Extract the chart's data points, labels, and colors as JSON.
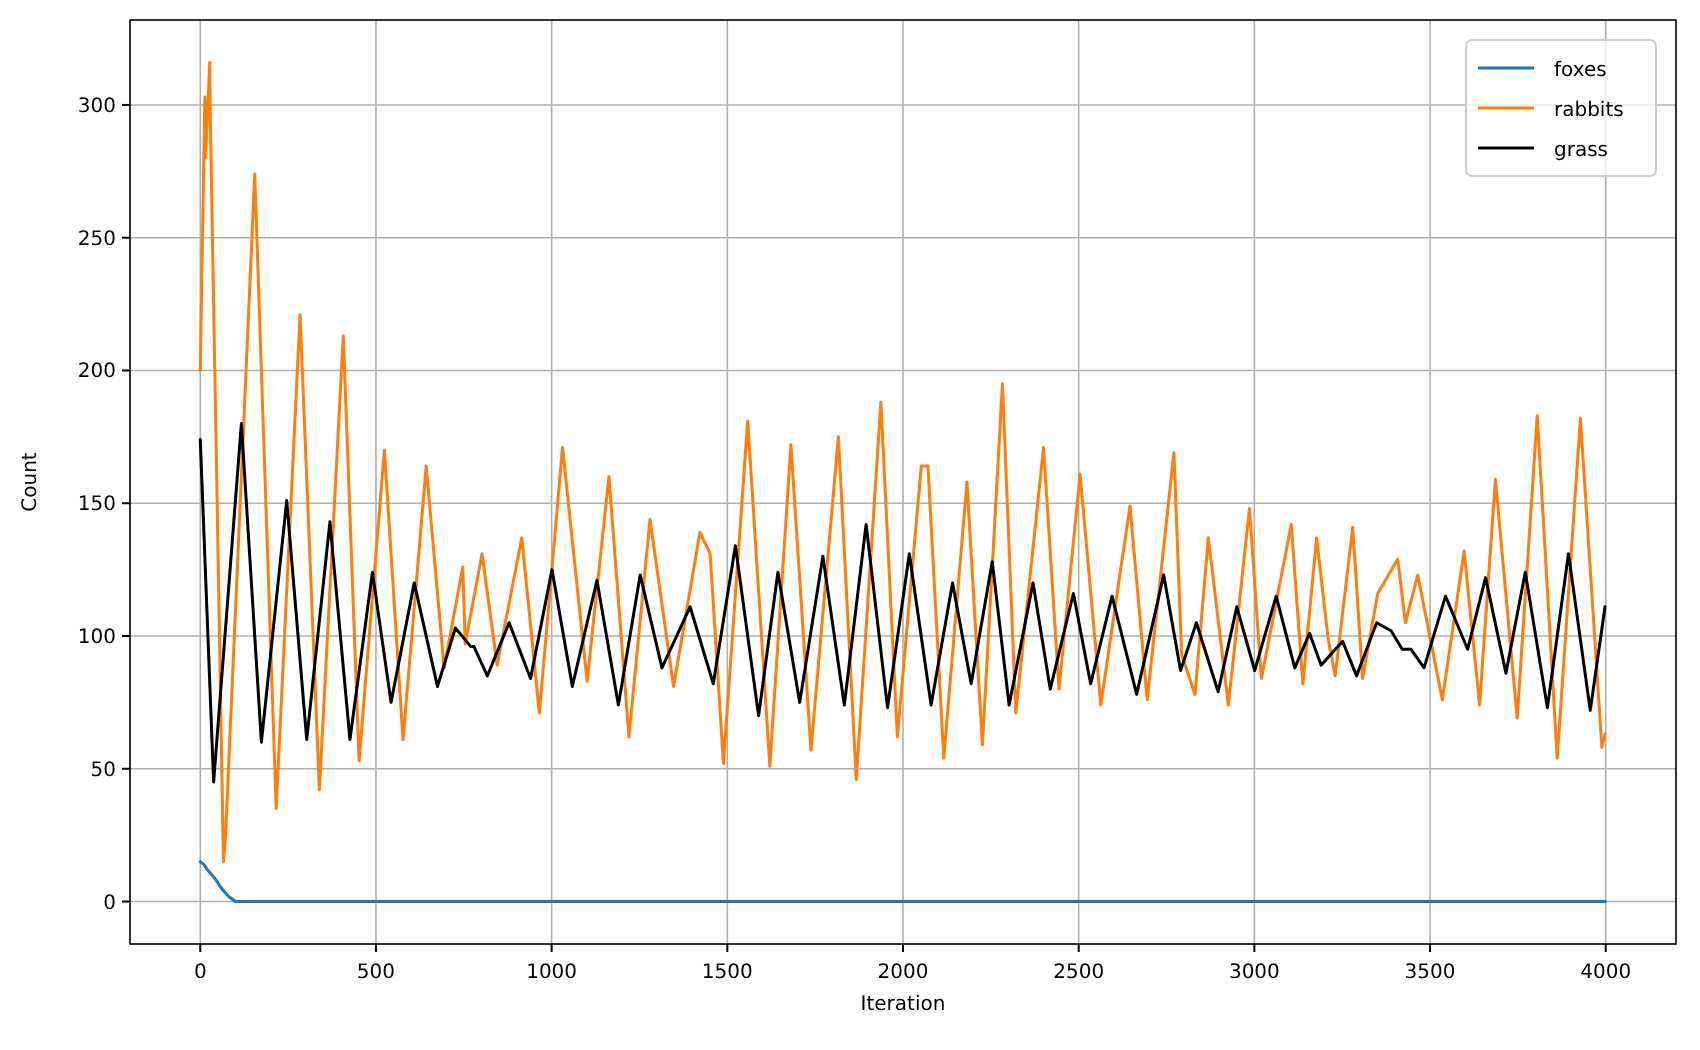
{
  "chart_data": {
    "type": "line",
    "xlabel": "Iteration",
    "ylabel": "Count",
    "xlim": [
      -200,
      4200
    ],
    "ylim": [
      -16,
      332
    ],
    "xticks": [
      0,
      500,
      1000,
      1500,
      2000,
      2500,
      3000,
      3500,
      4000
    ],
    "yticks": [
      0,
      50,
      100,
      150,
      200,
      250,
      300
    ],
    "grid": true,
    "legend": "top right",
    "line_style": "solid",
    "marker": "none",
    "series": [
      {
        "name": "foxes",
        "color": "#1f77b4",
        "x": [
          0,
          10,
          20,
          40,
          60,
          80,
          100,
          3999
        ],
        "values": [
          15,
          14,
          12,
          9,
          5,
          2,
          0,
          0
        ]
      },
      {
        "name": "rabbits",
        "color": "#ff7f0e",
        "x": [
          0,
          13,
          15,
          27,
          28,
          66,
          72,
          155,
          216,
          284,
          339,
          407,
          452,
          524,
          577,
          643,
          694,
          747,
          754,
          802,
          845,
          915,
          965,
          1031,
          1101,
          1163,
          1220,
          1280,
          1347,
          1422,
          1451,
          1489,
          1558,
          1621,
          1681,
          1738,
          1816,
          1867,
          1937,
          1984,
          2052,
          2071,
          2116,
          2182,
          2226,
          2283,
          2321,
          2400,
          2444,
          2504,
          2563,
          2646,
          2695,
          2771,
          2793,
          2831,
          2869,
          2926,
          2986,
          3020,
          3105,
          3138,
          3177,
          3210,
          3230,
          3280,
          3308,
          3351,
          3408,
          3430,
          3465,
          3535,
          3597,
          3641,
          3686,
          3748,
          3805,
          3862,
          3928,
          3989,
          3998
        ],
        "values": [
          200,
          303,
          280,
          316,
          300,
          15,
          25,
          274,
          35,
          221,
          42,
          213,
          53,
          170,
          61,
          164,
          88,
          126,
          97,
          131,
          89,
          137,
          71,
          171,
          83,
          160,
          62,
          144,
          81,
          139,
          131,
          52,
          181,
          51,
          172,
          57,
          175,
          46,
          188,
          62,
          164,
          164,
          54,
          158,
          59,
          195,
          71,
          171,
          80,
          161,
          74,
          149,
          76,
          169,
          93,
          78,
          137,
          74,
          148,
          84,
          142,
          82,
          137,
          99,
          85,
          141,
          84,
          116,
          129,
          105,
          123,
          76,
          132,
          74,
          159,
          69,
          183,
          54,
          182,
          58,
          63
        ]
      },
      {
        "name": "grass",
        "color": "#000000",
        "x": [
          0,
          38,
          117,
          174,
          246,
          303,
          369,
          426,
          490,
          543,
          609,
          675,
          726,
          770,
          779,
          817,
          879,
          940,
          1001,
          1059,
          1129,
          1190,
          1252,
          1314,
          1394,
          1460,
          1523,
          1589,
          1644,
          1706,
          1772,
          1833,
          1895,
          1956,
          2018,
          2080,
          2141,
          2194,
          2254,
          2302,
          2370,
          2419,
          2485,
          2534,
          2595,
          2665,
          2742,
          2790,
          2835,
          2897,
          2950,
          3001,
          3062,
          3115,
          3157,
          3190,
          3251,
          3291,
          3348,
          3389,
          3421,
          3446,
          3483,
          3544,
          3607,
          3658,
          3716,
          3771,
          3834,
          3894,
          3956,
          3998
        ],
        "values": [
          174,
          45,
          180,
          60,
          151,
          61,
          143,
          61,
          124,
          75,
          120,
          81,
          103,
          96,
          96,
          85,
          105,
          84,
          125,
          81,
          121,
          74,
          123,
          88,
          111,
          82,
          134,
          70,
          124,
          75,
          130,
          74,
          142,
          73,
          131,
          74,
          120,
          82,
          128,
          74,
          120,
          80,
          116,
          82,
          115,
          78,
          123,
          87,
          105,
          79,
          111,
          87,
          115,
          88,
          101,
          89,
          98,
          85,
          105,
          102,
          95,
          95,
          88,
          115,
          95,
          122,
          86,
          124,
          73,
          131,
          72,
          111
        ]
      }
    ]
  }
}
